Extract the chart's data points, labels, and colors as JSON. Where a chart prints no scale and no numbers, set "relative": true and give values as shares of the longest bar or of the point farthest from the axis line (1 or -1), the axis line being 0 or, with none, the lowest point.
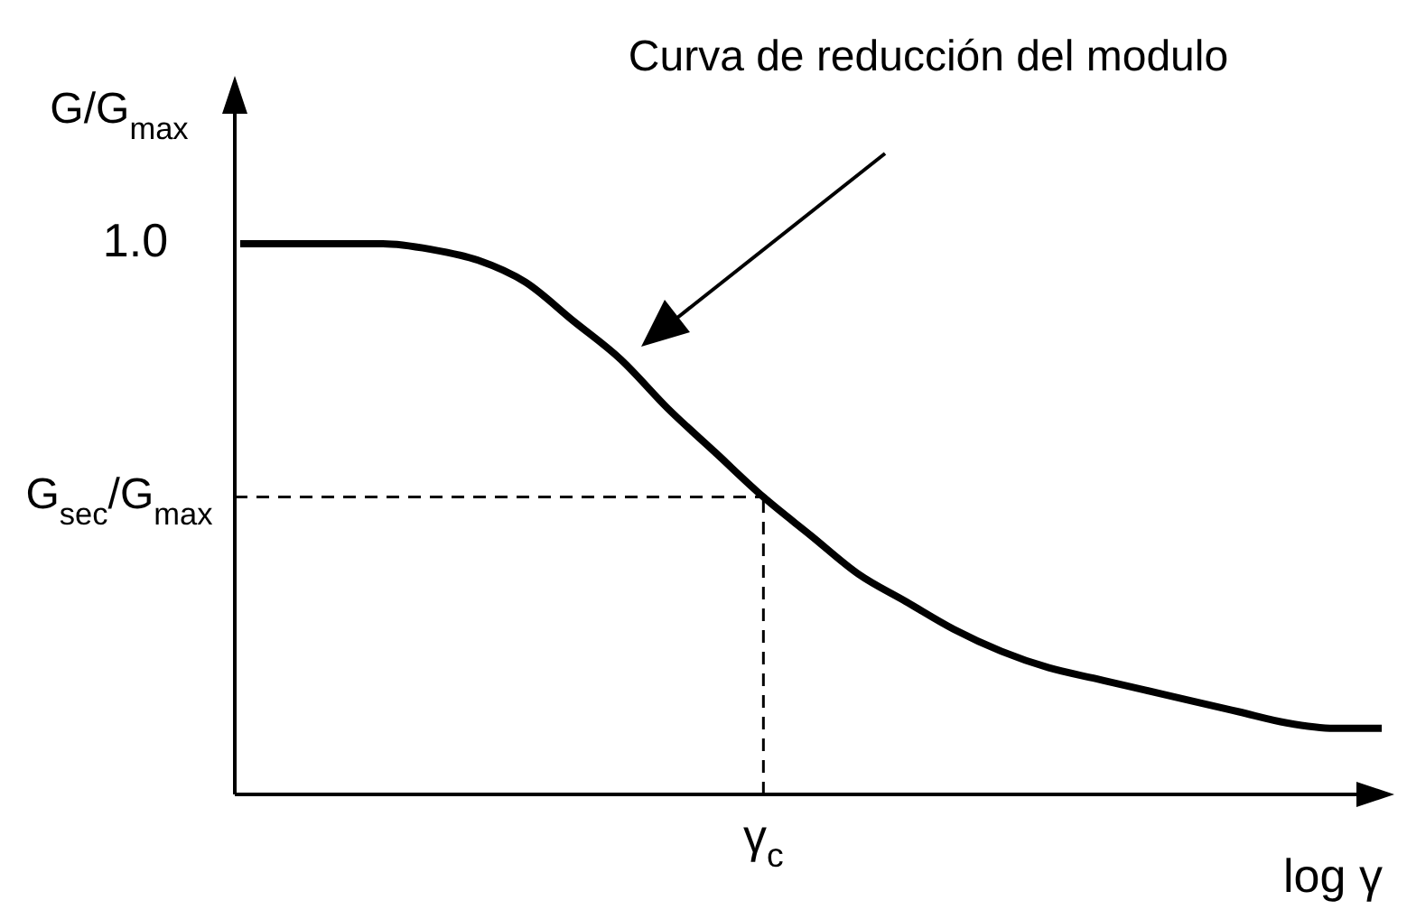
{
  "chart_data": {
    "type": "line",
    "ylabel": "G/G$_{max}$",
    "xlabel": "log γ",
    "relative": true,
    "categories": [
      null,
      null,
      null,
      null,
      null,
      null,
      null,
      null,
      null,
      null,
      null,
      null,
      null,
      null,
      null,
      null,
      null,
      null,
      null,
      null,
      null,
      null,
      null,
      null,
      null
    ],
    "series": [
      {
        "color": "#000000",
        "values": [
          1.0,
          1.0,
          1.0,
          1.0,
          0.99,
          0.97,
          0.93,
          0.86,
          0.79,
          0.7,
          0.62,
          0.54,
          0.47,
          0.4,
          0.35,
          0.3,
          0.26,
          0.23,
          0.21,
          0.19,
          0.17,
          0.15,
          0.13,
          0.12,
          0.12
        ]
      }
    ],
    "ref_lines": [
      {
        "axis": "y",
        "value": 0.54,
        "label": "G$_{sec}$/G$_{max}$",
        "line_style": "dashed"
      }
    ],
    "annotations": [
      "1.0",
      {
        "text": "γ$_{c}$",
        "y": 0.54
      },
      "Curva de reducción del modulo"
    ]
  }
}
